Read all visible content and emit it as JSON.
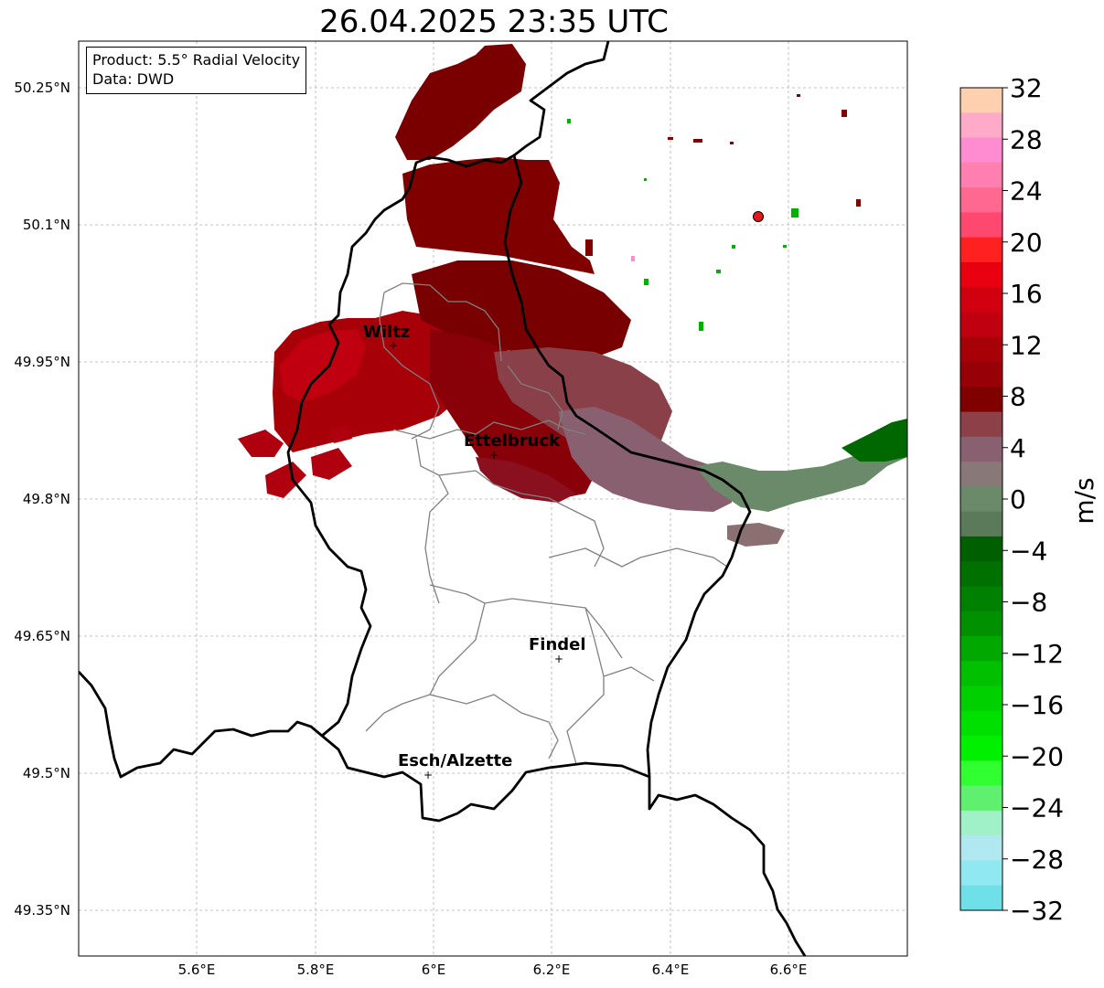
{
  "title": "26.04.2025 23:35 UTC",
  "info": {
    "product": "Product: 5.5° Radial Velocity",
    "data": "Data: DWD"
  },
  "map": {
    "lat_range": [
      49.3,
      50.3
    ],
    "lon_range": [
      5.4,
      6.8
    ],
    "lat_ticks": [
      "50.25°N",
      "50.1°N",
      "49.95°N",
      "49.8°N",
      "49.65°N",
      "49.5°N",
      "49.35°N"
    ],
    "lon_ticks": [
      "5.6°E",
      "5.8°E",
      "6°E",
      "6.2°E",
      "6.4°E",
      "6.6°E"
    ],
    "gridlines": true,
    "cities": [
      {
        "name": "Wiltz",
        "lon": 5.93,
        "lat": 49.966
      },
      {
        "name": "Ettelbruck",
        "lon": 6.1,
        "lat": 49.85
      },
      {
        "name": "Findel",
        "lon": 6.21,
        "lat": 49.627
      },
      {
        "name": "Esch/Alzette",
        "lon": 5.99,
        "lat": 49.5
      }
    ],
    "radar_marker": {
      "lon": 6.548,
      "lat": 50.11,
      "color": "#e31a1c"
    }
  },
  "colorbar": {
    "label": "m/s",
    "ticks": [
      "32",
      "28",
      "24",
      "20",
      "16",
      "12",
      "8",
      "4",
      "0",
      "−4",
      "−8",
      "−12",
      "−16",
      "−20",
      "−24",
      "−28",
      "−32"
    ],
    "colors": [
      "#ffd0b0",
      "#ffaac8",
      "#ff8cd0",
      "#ff80b0",
      "#ff6890",
      "#ff4870",
      "#ff2020",
      "#e80010",
      "#d00010",
      "#c00010",
      "#a80008",
      "#980008",
      "#800000",
      "#8c4048",
      "#886070",
      "#887878",
      "#6a8a6a",
      "#5a7a5a",
      "#006000",
      "#007000",
      "#008000",
      "#009000",
      "#00a800",
      "#00c000",
      "#00d000",
      "#00e000",
      "#00f000",
      "#30ff30",
      "#60f070",
      "#a0f0c8",
      "#b0e8f0",
      "#90e8f0",
      "#70e0e8"
    ]
  },
  "colors": {
    "border_country": "#000000",
    "border_region": "#808080",
    "gridline": "#b0b0b0"
  }
}
